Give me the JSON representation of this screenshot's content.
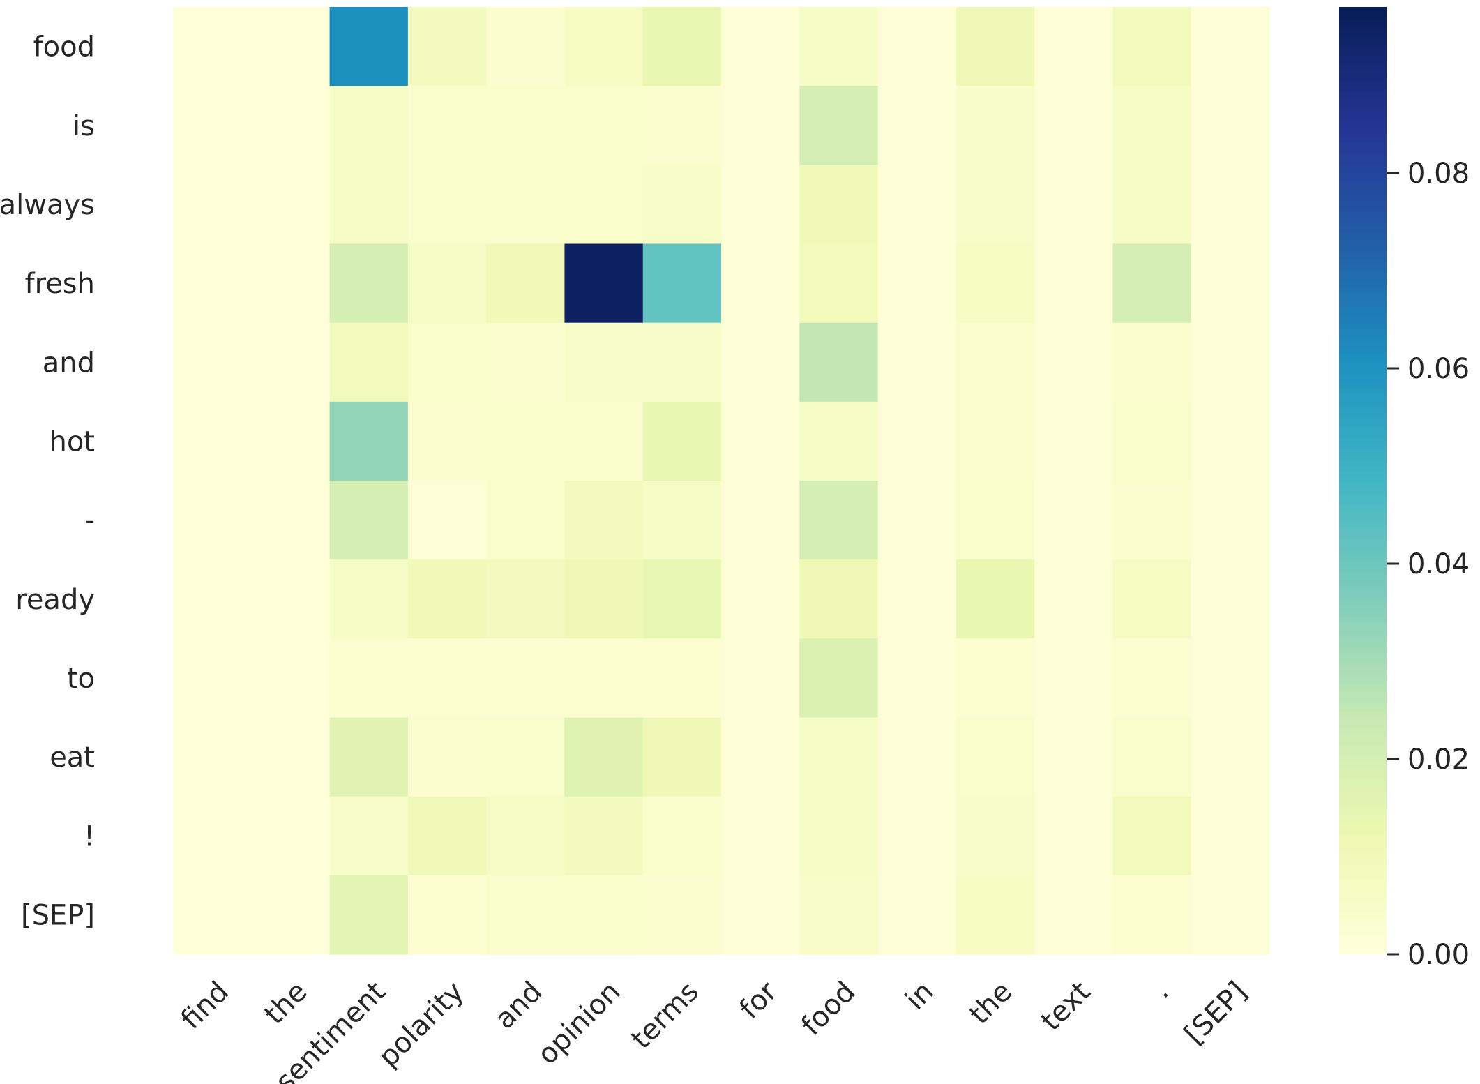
{
  "chart_data": {
    "type": "heatmap",
    "title": "",
    "xlabel": "",
    "ylabel": "",
    "x_categories": [
      "find",
      "the",
      "sentiment",
      "polarity",
      "and",
      "opinion",
      "terms",
      "for",
      "food",
      "in",
      "the",
      "text",
      ".",
      "[SEP]"
    ],
    "y_categories": [
      "food",
      "is",
      "always",
      "fresh",
      "and",
      "hot",
      "-",
      "ready",
      "to",
      "eat",
      "!",
      "[SEP]"
    ],
    "values": [
      [
        0.0,
        0.0,
        0.061,
        0.008,
        0.003,
        0.007,
        0.013,
        0.001,
        0.006,
        0.001,
        0.011,
        0.001,
        0.009,
        0.001
      ],
      [
        0.0,
        0.0,
        0.006,
        0.004,
        0.004,
        0.004,
        0.003,
        0.001,
        0.02,
        0.001,
        0.005,
        0.001,
        0.006,
        0.001
      ],
      [
        0.0,
        0.0,
        0.006,
        0.004,
        0.004,
        0.004,
        0.005,
        0.001,
        0.01,
        0.001,
        0.005,
        0.001,
        0.006,
        0.001
      ],
      [
        0.0,
        0.0,
        0.02,
        0.006,
        0.01,
        0.095,
        0.042,
        0.001,
        0.009,
        0.001,
        0.007,
        0.001,
        0.02,
        0.001
      ],
      [
        0.0,
        0.0,
        0.009,
        0.004,
        0.003,
        0.005,
        0.005,
        0.001,
        0.025,
        0.001,
        0.003,
        0.001,
        0.003,
        0.001
      ],
      [
        0.0,
        0.0,
        0.033,
        0.003,
        0.004,
        0.004,
        0.013,
        0.001,
        0.006,
        0.001,
        0.003,
        0.001,
        0.004,
        0.001
      ],
      [
        0.0,
        0.0,
        0.02,
        0.001,
        0.004,
        0.008,
        0.006,
        0.001,
        0.02,
        0.001,
        0.004,
        0.001,
        0.003,
        0.001
      ],
      [
        0.0,
        0.0,
        0.006,
        0.01,
        0.008,
        0.011,
        0.014,
        0.001,
        0.011,
        0.001,
        0.013,
        0.001,
        0.007,
        0.001
      ],
      [
        0.0,
        0.0,
        0.002,
        0.002,
        0.002,
        0.002,
        0.002,
        0.001,
        0.018,
        0.001,
        0.002,
        0.001,
        0.002,
        0.001
      ],
      [
        0.0,
        0.0,
        0.016,
        0.003,
        0.004,
        0.017,
        0.011,
        0.001,
        0.006,
        0.001,
        0.004,
        0.001,
        0.004,
        0.001
      ],
      [
        0.0,
        0.0,
        0.005,
        0.01,
        0.006,
        0.008,
        0.004,
        0.001,
        0.006,
        0.001,
        0.005,
        0.001,
        0.009,
        0.001
      ],
      [
        0.0,
        0.0,
        0.015,
        0.002,
        0.004,
        0.004,
        0.003,
        0.001,
        0.005,
        0.001,
        0.007,
        0.001,
        0.002,
        0.001
      ]
    ],
    "colormap": "YlGnBu",
    "vmin": 0,
    "vmax": 0.097,
    "colorbar": {
      "ticks": [
        0.0,
        0.02,
        0.04,
        0.06,
        0.08
      ],
      "tick_labels": [
        "0.00",
        "0.02",
        "0.04",
        "0.06",
        "0.08"
      ]
    },
    "grid": false,
    "x_tick_rotation_deg": -45
  }
}
